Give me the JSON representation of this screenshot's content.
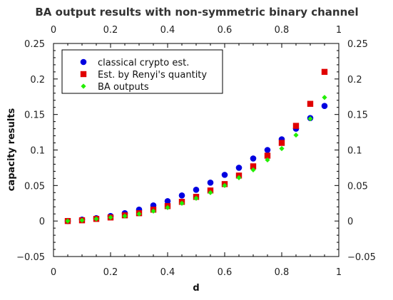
{
  "chart_data": {
    "type": "scatter",
    "title": "BA output results with non-symmetric binary channel",
    "xlabel": "d",
    "ylabel": "capacity results",
    "xlim": [
      0,
      1
    ],
    "ylim": [
      -0.05,
      0.25
    ],
    "x_ticks": [
      "0",
      "0.2",
      "0.4",
      "0.6",
      "0.8",
      "1"
    ],
    "y_ticks": [
      "−0.05",
      "0",
      "0.05",
      "0.1",
      "0.15",
      "0.2",
      "0.25"
    ],
    "x_tick_values": [
      0,
      0.2,
      0.4,
      0.6,
      0.8,
      1
    ],
    "y_tick_values": [
      -0.05,
      0,
      0.05,
      0.1,
      0.15,
      0.2,
      0.25
    ],
    "grid": false,
    "mirror_axes": true,
    "legend_position": "top-left",
    "x": [
      0.05,
      0.1,
      0.15,
      0.2,
      0.25,
      0.3,
      0.35,
      0.4,
      0.45,
      0.5,
      0.55,
      0.6,
      0.65,
      0.7,
      0.75,
      0.8,
      0.85,
      0.9,
      0.95
    ],
    "series": [
      {
        "name": "classical crypto est.",
        "marker": "circle",
        "color": "#0000e0",
        "values": [
          0.0,
          0.002,
          0.004,
          0.007,
          0.011,
          0.016,
          0.022,
          0.028,
          0.036,
          0.044,
          0.054,
          0.065,
          0.075,
          0.088,
          0.1,
          0.115,
          0.13,
          0.145,
          0.162
        ]
      },
      {
        "name": "Est. by Renyi's quantity",
        "marker": "square",
        "color": "#e00000",
        "values": [
          0.0,
          0.001,
          0.003,
          0.005,
          0.008,
          0.011,
          0.016,
          0.021,
          0.027,
          0.034,
          0.043,
          0.052,
          0.064,
          0.077,
          0.092,
          0.11,
          0.134,
          0.165,
          0.21
        ]
      },
      {
        "name": "BA outputs",
        "marker": "diamond",
        "color": "#22ee00",
        "values": [
          0.0,
          0.001,
          0.003,
          0.005,
          0.007,
          0.01,
          0.014,
          0.019,
          0.025,
          0.032,
          0.04,
          0.05,
          0.061,
          0.072,
          0.086,
          0.102,
          0.121,
          0.144,
          0.174
        ]
      }
    ]
  }
}
